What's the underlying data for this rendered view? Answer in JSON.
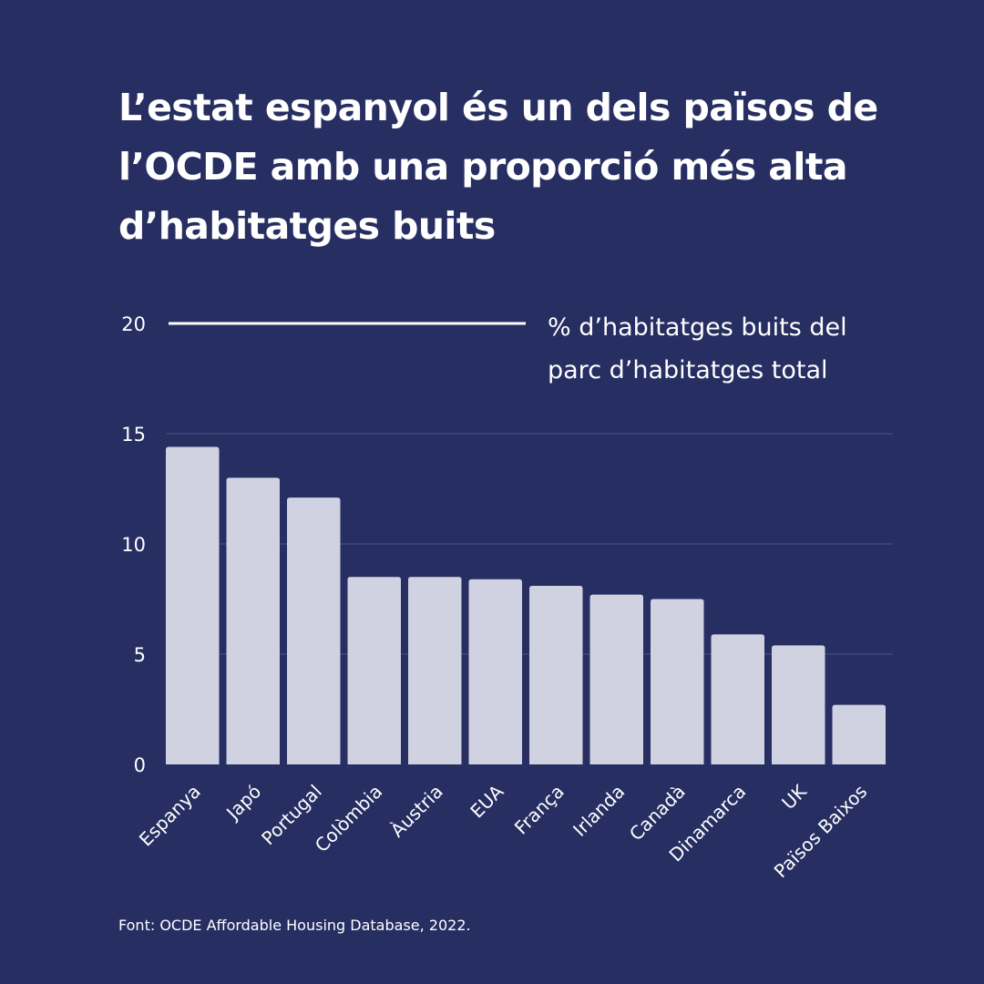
{
  "title": "L’estat espanyol és un dels països de l’OCDE amb una proporció més alta d’habitatges buits",
  "source": "Font: OCDE Affordable Housing Database, 2022.",
  "colors": {
    "background": "#262e62",
    "bar": "#d0d2e2",
    "text": "#ffffff",
    "grid": "#4a5388"
  },
  "chart_data": {
    "type": "bar",
    "ylabel_lines": [
      "% d’habitatges buits del",
      "parc d’habitatges total"
    ],
    "categories": [
      "Espanya",
      "Japó",
      "Portugal",
      "Colòmbia",
      "Àustria",
      "EUA",
      "França",
      "Irlanda",
      "Canadà",
      "Dinamarca",
      "UK",
      "Països Baixos"
    ],
    "values": [
      14.4,
      13.0,
      12.1,
      8.5,
      8.5,
      8.4,
      8.1,
      7.7,
      7.5,
      5.9,
      5.4,
      2.7
    ],
    "ylim": [
      0,
      20
    ],
    "yticks": [
      0,
      5,
      10,
      15,
      20
    ],
    "grid": true,
    "legend": "none"
  }
}
